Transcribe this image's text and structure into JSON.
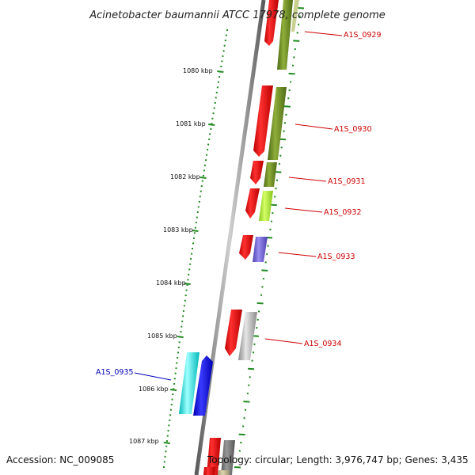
{
  "title": "Acinetobacter baumannii ATCC 17978, complete genome",
  "footer": {
    "accession": "Accession: NC_009085",
    "topology": "Topology: circular; Length: 3,976,747 bp; Genes: 3,435"
  },
  "ticks": [
    {
      "label": "1080 kbp"
    },
    {
      "label": "1081 kbp"
    },
    {
      "label": "1082 kbp"
    },
    {
      "label": "1083 kbp"
    },
    {
      "label": "1084 kbp"
    },
    {
      "label": "1085 kbp"
    },
    {
      "label": "1086 kbp"
    },
    {
      "label": "1087 kbp"
    }
  ],
  "genes": [
    {
      "label": "A1S_0929",
      "strand": "reverse",
      "color": "#cc0000"
    },
    {
      "label": "A1S_0930",
      "strand": "reverse",
      "color": "#cc0000"
    },
    {
      "label": "A1S_0931",
      "strand": "reverse",
      "color": "#cc0000"
    },
    {
      "label": "A1S_0932",
      "strand": "reverse",
      "color": "#cc0000"
    },
    {
      "label": "A1S_0933",
      "strand": "reverse",
      "color": "#cc0000"
    },
    {
      "label": "A1S_0934",
      "strand": "reverse",
      "color": "#cc0000"
    },
    {
      "label": "A1S_0935",
      "strand": "forward",
      "color": "#0000bb"
    }
  ],
  "colors": {
    "cds_reverse": "#ee0000",
    "cds_forward": "#0000ee",
    "cog_olive": "#6b8e23",
    "cog_lime": "#a8e830",
    "cog_purple": "#6a5acd",
    "cog_gray": "#b0b0b0",
    "cog_cyan": "#00e0e0",
    "tick": "#228b22",
    "backbone": "#888888"
  }
}
